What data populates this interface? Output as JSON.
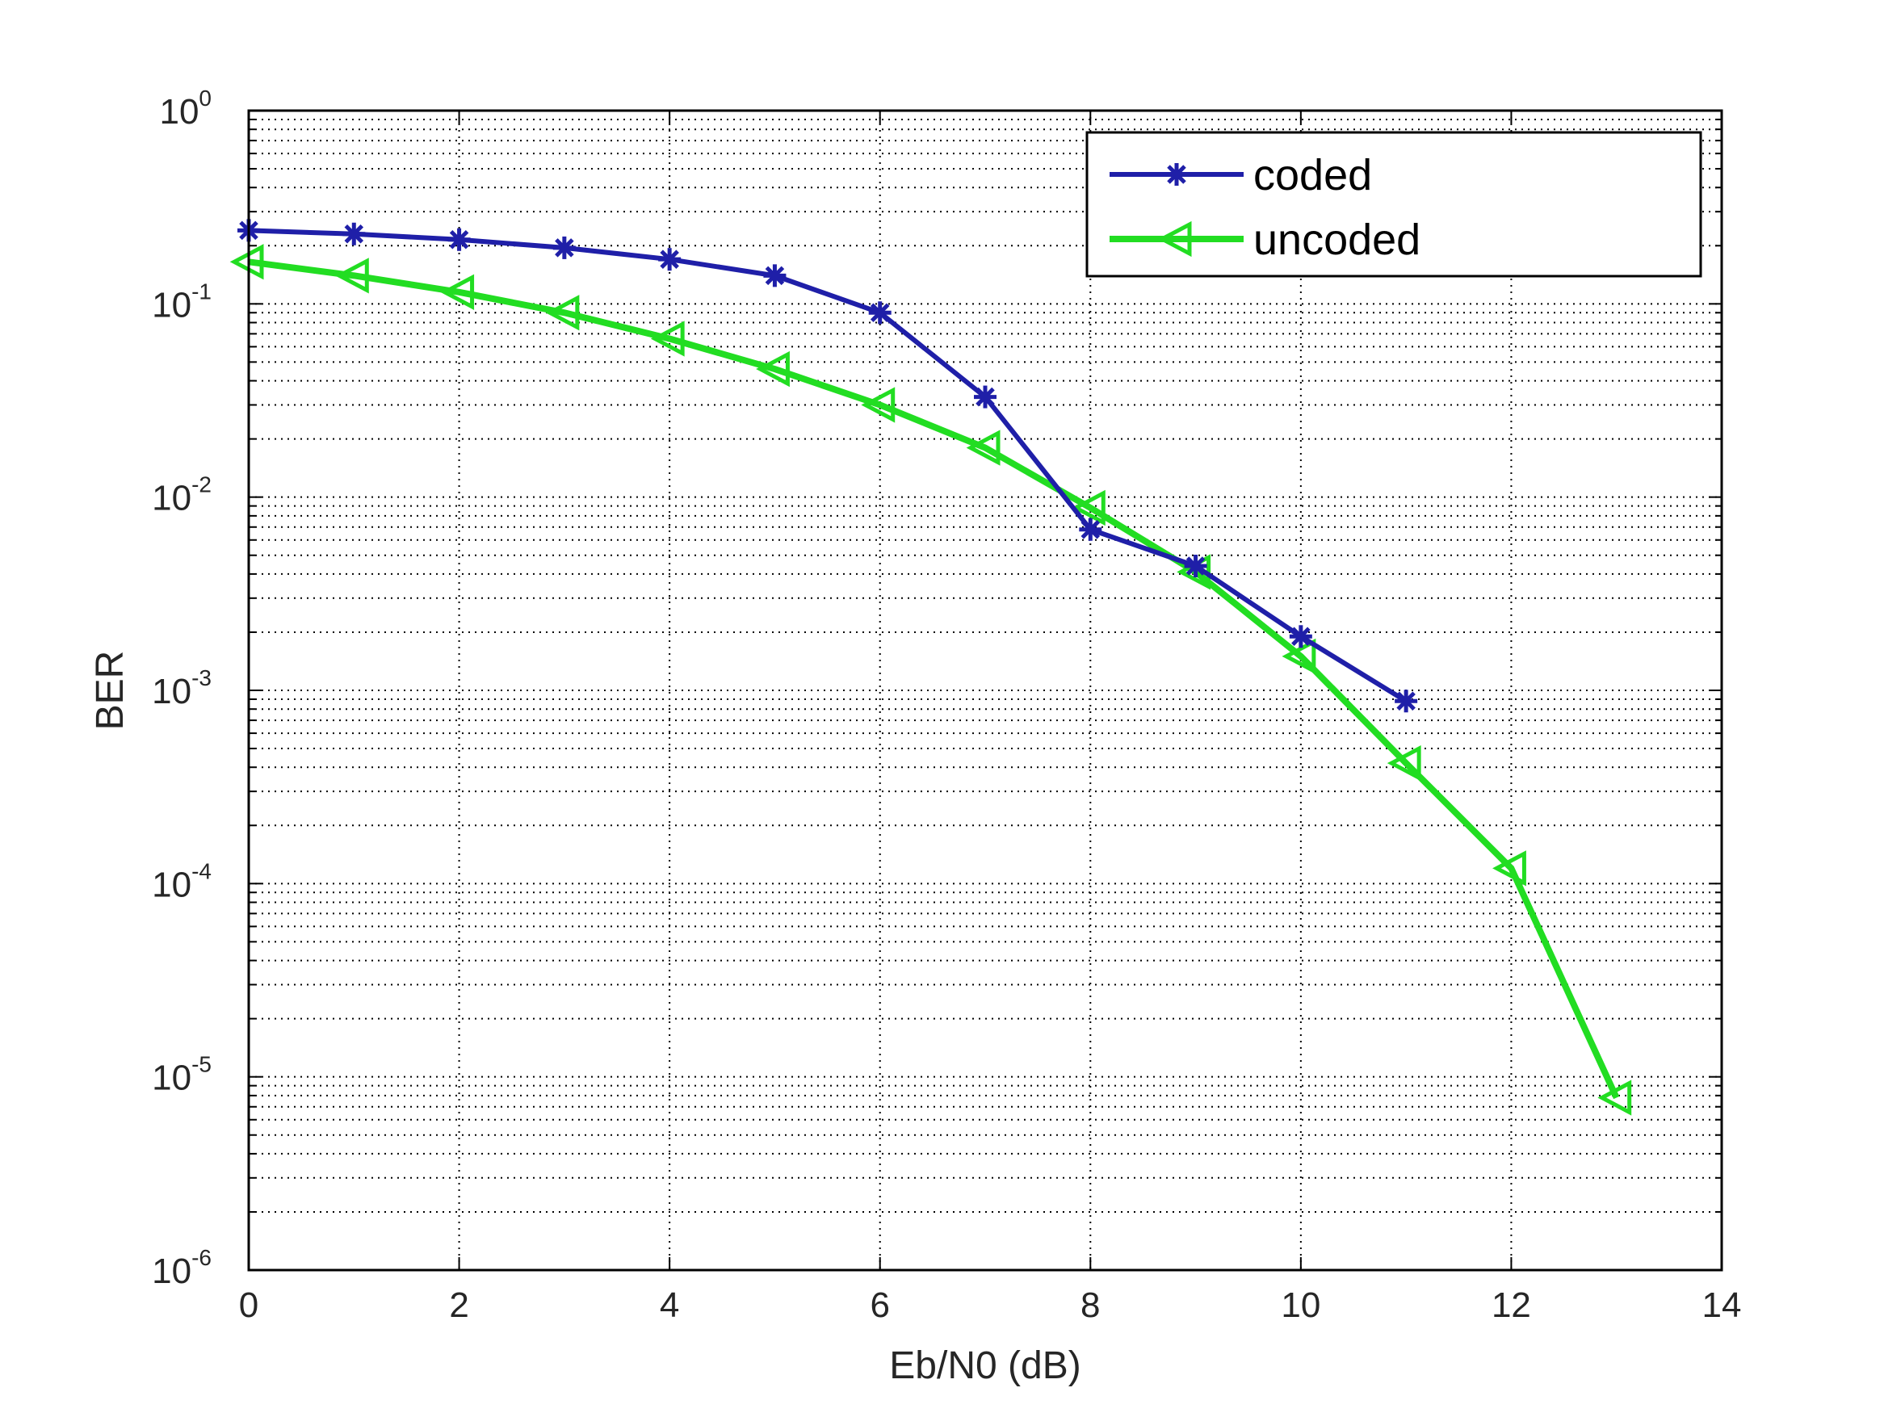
{
  "chart_data": {
    "type": "line",
    "title": "",
    "xlabel": "Eb/N0 (dB)",
    "ylabel": "BER",
    "xlim": [
      0,
      14
    ],
    "ylim": [
      1e-06,
      1
    ],
    "yscale": "log",
    "grid": true,
    "minor_grid": true,
    "legend_position": "top-right",
    "x_ticks": [
      "0",
      "2",
      "4",
      "6",
      "8",
      "10",
      "12",
      "14"
    ],
    "y_ticks": [
      {
        "base": "10",
        "exp": "0"
      },
      {
        "base": "10",
        "exp": "-1"
      },
      {
        "base": "10",
        "exp": "-2"
      },
      {
        "base": "10",
        "exp": "-3"
      },
      {
        "base": "10",
        "exp": "-4"
      },
      {
        "base": "10",
        "exp": "-5"
      },
      {
        "base": "10",
        "exp": "-6"
      }
    ],
    "series": [
      {
        "name": "coded",
        "color": "#1f1fa8",
        "marker": "star",
        "x": [
          0,
          1,
          2,
          3,
          4,
          5,
          6,
          7,
          8,
          9,
          10,
          11
        ],
        "y": [
          0.24,
          0.23,
          0.215,
          0.195,
          0.17,
          0.14,
          0.09,
          0.033,
          0.0068,
          0.0044,
          0.0019,
          0.00088
        ]
      },
      {
        "name": "uncoded",
        "color": "#22dd22",
        "marker": "triangle-left",
        "x": [
          0,
          1,
          2,
          3,
          4,
          5,
          6,
          7,
          8,
          9,
          10,
          11,
          12,
          13
        ],
        "y": [
          0.165,
          0.14,
          0.115,
          0.09,
          0.066,
          0.046,
          0.03,
          0.018,
          0.0088,
          0.0041,
          0.0015,
          0.00042,
          0.00012,
          7.8e-06
        ]
      }
    ]
  }
}
